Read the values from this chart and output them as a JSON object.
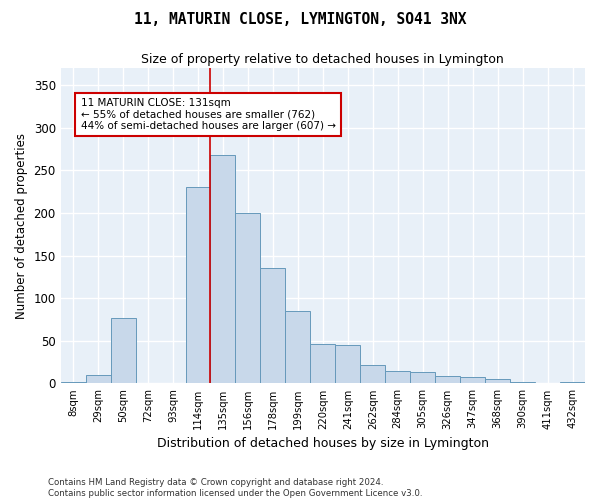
{
  "title": "11, MATURIN CLOSE, LYMINGTON, SO41 3NX",
  "subtitle": "Size of property relative to detached houses in Lymington",
  "xlabel": "Distribution of detached houses by size in Lymington",
  "ylabel": "Number of detached properties",
  "bar_color": "#c8d8ea",
  "bar_edge_color": "#6699bb",
  "background_color": "#e8f0f8",
  "grid_color": "#ffffff",
  "categories": [
    "8sqm",
    "29sqm",
    "50sqm",
    "72sqm",
    "93sqm",
    "114sqm",
    "135sqm",
    "156sqm",
    "178sqm",
    "199sqm",
    "220sqm",
    "241sqm",
    "262sqm",
    "284sqm",
    "305sqm",
    "326sqm",
    "347sqm",
    "368sqm",
    "390sqm",
    "411sqm",
    "432sqm"
  ],
  "values": [
    2,
    10,
    77,
    0,
    0,
    230,
    268,
    200,
    135,
    85,
    46,
    45,
    22,
    15,
    13,
    9,
    7,
    5,
    2,
    0,
    2
  ],
  "ylim": [
    0,
    370
  ],
  "yticks": [
    0,
    50,
    100,
    150,
    200,
    250,
    300,
    350
  ],
  "annotation_text": "11 MATURIN CLOSE: 131sqm\n← 55% of detached houses are smaller (762)\n44% of semi-detached houses are larger (607) →",
  "annotation_box_color": "#ffffff",
  "annotation_box_edge": "#cc0000",
  "vline_color": "#cc0000",
  "vline_x_index": 6,
  "footnote": "Contains HM Land Registry data © Crown copyright and database right 2024.\nContains public sector information licensed under the Open Government Licence v3.0."
}
